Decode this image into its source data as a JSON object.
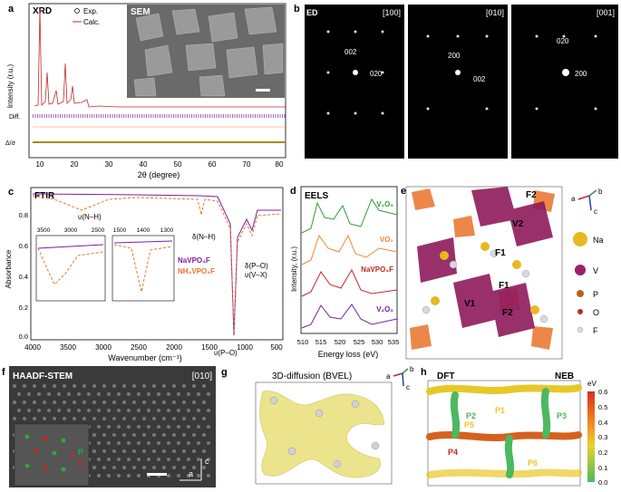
{
  "panels": {
    "a": {
      "letter": "a",
      "title": "XRD",
      "sem_label": "SEM",
      "legend_exp": "Exp.",
      "legend_calc": "Calc.",
      "ylabel": "Intensity (r.u.)",
      "diff_label": "Diff.",
      "dsig_label": "Δ/σ",
      "xlabel": "2θ (degree)",
      "xticks": [
        "10",
        "20",
        "30",
        "40",
        "50",
        "60",
        "70",
        "80"
      ]
    },
    "b": {
      "letter": "b",
      "title": "ED",
      "zones": [
        {
          "axis": "[100]",
          "spots": [
            "002",
            "020"
          ]
        },
        {
          "axis": "[010]",
          "spots": [
            "200",
            "002"
          ]
        },
        {
          "axis": "[001]",
          "spots": [
            "020",
            "200"
          ]
        }
      ]
    },
    "c": {
      "letter": "c",
      "title": "FTIR",
      "ylabel": "Absorbance",
      "xlabel": "Wavenumber (cm⁻¹)",
      "yticks": [
        "0.0",
        "0.2",
        "0.4",
        "0.6",
        "0.8"
      ],
      "xticks": [
        "4000",
        "3500",
        "3000",
        "2500",
        "2000",
        "1500",
        "1000",
        "500"
      ],
      "annotations": [
        "υ(N–H)",
        "δ(N–H)",
        "δ(P–O)",
        "υ(V–X)",
        "υ(P–O)"
      ],
      "inset1_ticks": [
        "3500",
        "3000",
        "2500"
      ],
      "inset2_ticks": [
        "1500",
        "1400",
        "1300"
      ],
      "legend": [
        "NaVPO₄F",
        "NH₄VPO₄F"
      ],
      "colors": {
        "navpo4f": "#7b1fa2",
        "nh4vpo4f": "#e8742a"
      }
    },
    "d": {
      "letter": "d",
      "title": "EELS",
      "ylabel": "Intensity, (r.u.)",
      "xlabel": "Energy loss (eV)",
      "xticks": [
        "510",
        "515",
        "520",
        "525",
        "530",
        "535"
      ],
      "series": [
        {
          "name": "V₂O₅",
          "color": "#2e9e3a"
        },
        {
          "name": "VO₂",
          "color": "#f0882e"
        },
        {
          "name": "NaVPO₄F",
          "color": "#c62828"
        },
        {
          "name": "V₂O₃",
          "color": "#7b1fa2"
        }
      ]
    },
    "e": {
      "letter": "e",
      "site_labels": [
        "F2",
        "V2",
        "F1",
        "F1",
        "V1",
        "F2"
      ],
      "axes": [
        "a",
        "b",
        "c"
      ],
      "legend": [
        {
          "name": "Na",
          "color": "#e8b820"
        },
        {
          "name": "V",
          "color": "#9c1e6a"
        },
        {
          "name": "P",
          "color": "#b5651d"
        },
        {
          "name": "O",
          "color": "#c0282a"
        },
        {
          "name": "F",
          "color": "#d8d8e0"
        }
      ]
    },
    "f": {
      "letter": "f",
      "title": "HAADF-STEM",
      "axis": "[010]",
      "inset_p": "P",
      "inset_v": "V",
      "ax_c": "c",
      "ax_a": "a"
    },
    "g": {
      "letter": "g",
      "title": "3D-diffusion (BVEL)",
      "axes": [
        "a",
        "b",
        "c"
      ]
    },
    "h": {
      "letter": "h",
      "title_left": "DFT",
      "title_right": "NEB",
      "paths": [
        "P1",
        "P2",
        "P3",
        "P4",
        "P5",
        "P6"
      ],
      "colorbar_unit": "eV",
      "colorbar_ticks": [
        "0.6",
        "0.5",
        "0.4",
        "0.3",
        "0.2",
        "0.1",
        "0.0"
      ]
    }
  }
}
